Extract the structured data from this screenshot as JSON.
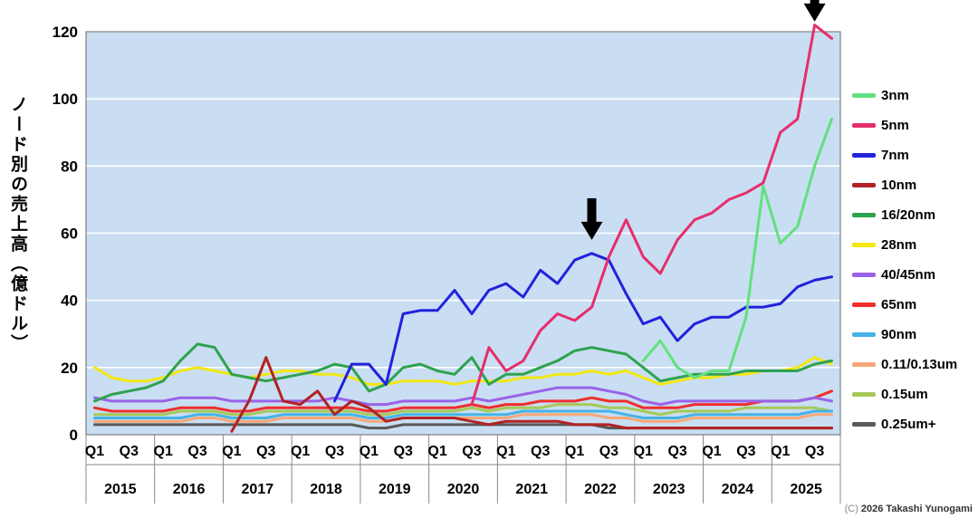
{
  "chart": {
    "y_axis_title": "ノード別の売上高（億ドル）",
    "copyright_prefix": "(C)",
    "copyright_text": "2026 Takashi Yunogami"
  },
  "chart_data": {
    "type": "line",
    "title": "",
    "ylabel": "ノード別の売上高（億ドル）",
    "ylim": [
      0,
      120
    ],
    "y_ticks": [
      0,
      20,
      40,
      60,
      80,
      100,
      120
    ],
    "years": [
      2015,
      2016,
      2017,
      2018,
      2019,
      2020,
      2021,
      2022,
      2023,
      2024,
      2025
    ],
    "quarter_tick_labels": [
      "Q1",
      "Q3"
    ],
    "grid": true,
    "grid_color": "#ffffff",
    "plot_background": "#c9def2",
    "legend_position": "right",
    "series": [
      {
        "name": "3nm",
        "color": "#63e07e",
        "values": [
          null,
          null,
          null,
          null,
          null,
          null,
          null,
          null,
          null,
          null,
          null,
          null,
          null,
          null,
          null,
          null,
          null,
          null,
          null,
          null,
          null,
          null,
          null,
          null,
          null,
          null,
          null,
          null,
          null,
          null,
          null,
          null,
          22,
          28,
          20,
          17,
          19,
          19,
          35,
          74,
          57,
          62,
          80,
          94
        ]
      },
      {
        "name": "5nm",
        "color": "#e62e6b",
        "values": [
          null,
          null,
          null,
          null,
          null,
          null,
          null,
          null,
          null,
          null,
          null,
          null,
          null,
          null,
          null,
          null,
          null,
          null,
          null,
          null,
          null,
          null,
          9,
          26,
          19,
          22,
          31,
          36,
          34,
          38,
          53,
          64,
          53,
          48,
          58,
          64,
          66,
          70,
          72,
          75,
          90,
          94,
          122,
          118
        ]
      },
      {
        "name": "7nm",
        "color": "#2222dd",
        "values": [
          null,
          null,
          null,
          null,
          null,
          null,
          null,
          null,
          null,
          null,
          null,
          null,
          null,
          null,
          10,
          21,
          21,
          15,
          36,
          37,
          37,
          43,
          36,
          43,
          45,
          41,
          49,
          45,
          52,
          54,
          52,
          42,
          33,
          35,
          28,
          33,
          35,
          35,
          38,
          38,
          39,
          44,
          46,
          47
        ]
      },
      {
        "name": "10nm",
        "color": "#b22222",
        "values": [
          null,
          null,
          null,
          null,
          null,
          null,
          null,
          null,
          1,
          10,
          23,
          10,
          9,
          13,
          6,
          10,
          8,
          4,
          5,
          5,
          5,
          5,
          4,
          3,
          4,
          4,
          4,
          4,
          3,
          3,
          3,
          2,
          2,
          2,
          2,
          2,
          2,
          2,
          2,
          2,
          2,
          2,
          2,
          2
        ]
      },
      {
        "name": "16/20nm",
        "color": "#2fa24f",
        "values": [
          10,
          12,
          13,
          14,
          16,
          22,
          27,
          26,
          18,
          17,
          16,
          17,
          18,
          19,
          21,
          20,
          13,
          15,
          20,
          21,
          19,
          18,
          23,
          15,
          18,
          18,
          20,
          22,
          25,
          26,
          25,
          24,
          20,
          16,
          17,
          18,
          18,
          18,
          19,
          19,
          19,
          19,
          21,
          22
        ]
      },
      {
        "name": "28nm",
        "color": "#f2e713",
        "values": [
          20,
          17,
          16,
          16,
          17,
          19,
          20,
          19,
          18,
          17,
          18,
          19,
          19,
          18,
          18,
          17,
          15,
          15,
          16,
          16,
          16,
          15,
          16,
          16,
          16,
          17,
          17,
          18,
          18,
          19,
          18,
          19,
          17,
          15,
          16,
          17,
          17,
          18,
          18,
          19,
          19,
          20,
          23,
          21
        ]
      },
      {
        "name": "40/45nm",
        "color": "#9a63e8",
        "values": [
          11,
          10,
          10,
          10,
          10,
          11,
          11,
          11,
          10,
          10,
          10,
          10,
          10,
          10,
          11,
          10,
          9,
          9,
          10,
          10,
          10,
          10,
          11,
          10,
          11,
          12,
          13,
          14,
          14,
          14,
          13,
          12,
          10,
          9,
          10,
          10,
          10,
          10,
          10,
          10,
          10,
          10,
          11,
          10
        ]
      },
      {
        "name": "65nm",
        "color": "#ee2e2e",
        "values": [
          8,
          7,
          7,
          7,
          7,
          8,
          8,
          8,
          7,
          7,
          8,
          8,
          8,
          8,
          8,
          8,
          7,
          7,
          8,
          8,
          8,
          8,
          9,
          8,
          9,
          9,
          10,
          10,
          10,
          11,
          10,
          10,
          8,
          8,
          8,
          9,
          9,
          9,
          9,
          10,
          10,
          10,
          11,
          13
        ]
      },
      {
        "name": "90nm",
        "color": "#45b3e6",
        "values": [
          5,
          5,
          5,
          5,
          5,
          5,
          6,
          6,
          5,
          5,
          5,
          6,
          6,
          6,
          6,
          6,
          5,
          5,
          6,
          6,
          6,
          6,
          6,
          6,
          6,
          7,
          7,
          7,
          7,
          7,
          7,
          6,
          5,
          5,
          5,
          6,
          6,
          6,
          6,
          6,
          6,
          6,
          7,
          7
        ]
      },
      {
        "name": "0.11/0.13um",
        "color": "#f6a878",
        "values": [
          4,
          4,
          4,
          4,
          4,
          4,
          5,
          5,
          4,
          4,
          4,
          5,
          5,
          5,
          5,
          5,
          4,
          4,
          5,
          5,
          5,
          5,
          5,
          5,
          5,
          6,
          6,
          6,
          6,
          6,
          5,
          5,
          4,
          4,
          4,
          5,
          5,
          5,
          5,
          5,
          5,
          5,
          6,
          6
        ]
      },
      {
        "name": "0.15um",
        "color": "#a6c957",
        "values": [
          6,
          6,
          6,
          6,
          6,
          7,
          7,
          7,
          6,
          6,
          7,
          7,
          7,
          7,
          7,
          7,
          6,
          6,
          7,
          7,
          7,
          7,
          8,
          7,
          8,
          8,
          8,
          9,
          9,
          9,
          8,
          8,
          7,
          6,
          7,
          7,
          7,
          7,
          8,
          8,
          8,
          8,
          8,
          7
        ]
      },
      {
        "name": "0.25um+",
        "color": "#595959",
        "values": [
          3,
          3,
          3,
          3,
          3,
          3,
          3,
          3,
          3,
          3,
          3,
          3,
          3,
          3,
          3,
          3,
          2,
          2,
          3,
          3,
          3,
          3,
          3,
          3,
          3,
          3,
          3,
          3,
          3,
          3,
          2,
          2,
          2,
          2,
          2,
          2,
          2,
          2,
          2,
          2,
          2,
          2,
          2,
          2
        ]
      }
    ],
    "annotations": [
      {
        "type": "down-arrow",
        "label": "7nm-peak-2022",
        "quarter_index": 29,
        "tip_value": 58
      },
      {
        "type": "down-arrow",
        "label": "5nm-peak-2025",
        "quarter_index": 42,
        "tip_value": 123
      }
    ]
  }
}
